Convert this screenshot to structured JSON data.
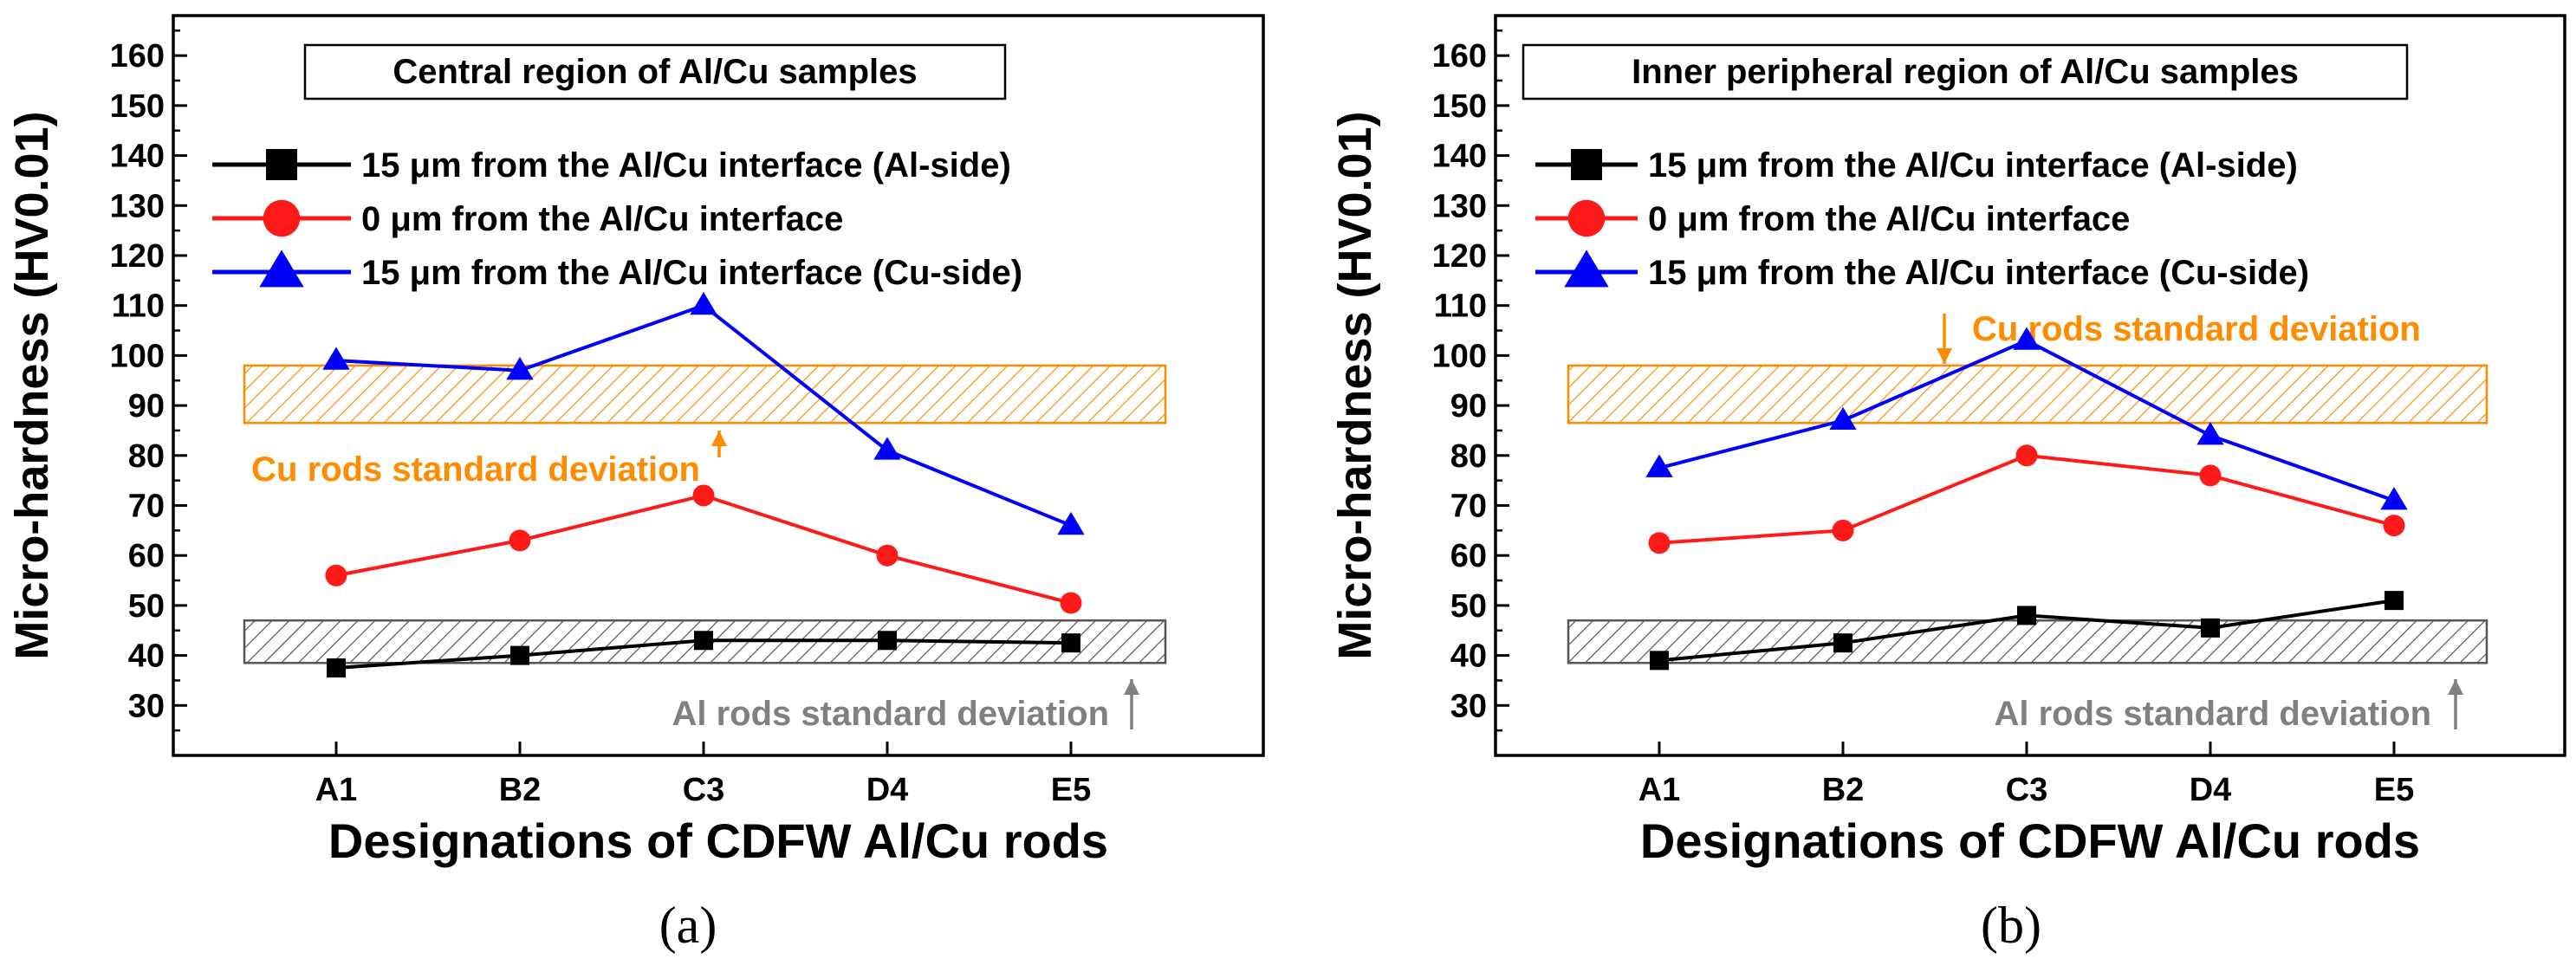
{
  "panels": [
    {
      "label": "(a)"
    },
    {
      "label": "(b)"
    }
  ],
  "colors": {
    "al_side": "#000000",
    "interface": "#ff1a1a",
    "cu_side": "#0000ff",
    "cu_band": "#ff8c00",
    "al_band": "#808080"
  },
  "chart_data": [
    {
      "type": "line",
      "title": "Central region of Al/Cu samples",
      "xlabel": "Designations of CDFW Al/Cu rods",
      "ylabel": "Micro-hardness (HV0.01)",
      "categories": [
        "A1",
        "B2",
        "C3",
        "D4",
        "E5"
      ],
      "y_ticks": [
        "30",
        "40",
        "50",
        "60",
        "70",
        "80",
        "90",
        "100",
        "110",
        "120",
        "130",
        "140",
        "150",
        "160"
      ],
      "ylim": [
        20,
        168
      ],
      "grid": false,
      "legend_position": "upper-left",
      "series": [
        {
          "name": "15 μm from the Al/Cu interface (Al-side)",
          "marker": "square",
          "color": "#000000",
          "values": [
            37.5,
            40,
            43,
            43,
            42.5
          ]
        },
        {
          "name": "0 μm from the Al/Cu interface",
          "marker": "circle",
          "color": "#ff1a1a",
          "values": [
            56,
            63,
            72,
            60,
            50.5
          ]
        },
        {
          "name": "15 μm from the Al/Cu interface (Cu-side)",
          "marker": "triangle",
          "color": "#0000ff",
          "values": [
            99,
            97,
            110,
            81,
            66
          ]
        }
      ],
      "bands": [
        {
          "label": "Cu rods standard deviation",
          "range": [
            86.5,
            98
          ],
          "color": "#ff8c00"
        },
        {
          "label": "Al rods standard deviation",
          "range": [
            38.5,
            47
          ],
          "color": "#808080"
        }
      ]
    },
    {
      "type": "line",
      "title": "Inner peripheral region of Al/Cu samples",
      "xlabel": "Designations of CDFW Al/Cu rods",
      "ylabel": "Micro-hardness (HV0.01)",
      "categories": [
        "A1",
        "B2",
        "C3",
        "D4",
        "E5"
      ],
      "y_ticks": [
        "30",
        "40",
        "50",
        "60",
        "70",
        "80",
        "90",
        "100",
        "110",
        "120",
        "130",
        "140",
        "150",
        "160"
      ],
      "ylim": [
        20,
        168
      ],
      "grid": false,
      "legend_position": "upper-left",
      "series": [
        {
          "name": "15 μm from the Al/Cu interface (Al-side)",
          "marker": "square",
          "color": "#000000",
          "values": [
            39,
            42.5,
            48,
            45.5,
            51
          ]
        },
        {
          "name": "0 μm from the Al/Cu interface",
          "marker": "circle",
          "color": "#ff1a1a",
          "values": [
            62.5,
            65,
            80,
            76,
            66
          ]
        },
        {
          "name": "15 μm from the Al/Cu interface (Cu-side)",
          "marker": "triangle",
          "color": "#0000ff",
          "values": [
            77.5,
            87,
            103,
            84,
            71
          ]
        }
      ],
      "bands": [
        {
          "label": "Cu rods standard deviation",
          "range": [
            86.5,
            98
          ],
          "color": "#ff8c00"
        },
        {
          "label": "Al rods standard deviation",
          "range": [
            38.5,
            47
          ],
          "color": "#808080"
        }
      ]
    }
  ]
}
